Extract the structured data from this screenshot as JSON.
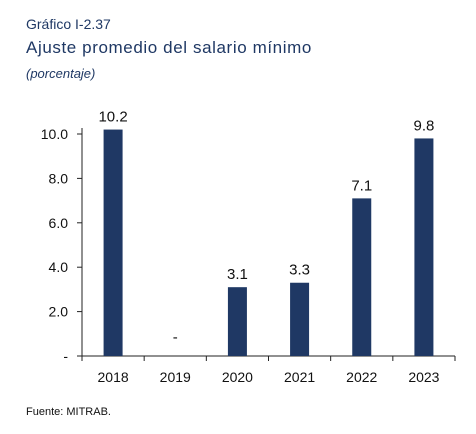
{
  "header": {
    "subtitle": "Gráfico I-2.37",
    "title": "Ajuste promedio del salario mínimo",
    "unit": "(porcentaje)"
  },
  "footer": {
    "source": "Fuente: MITRAB."
  },
  "chart_data": {
    "type": "bar",
    "categories": [
      "2018",
      "2019",
      "2020",
      "2021",
      "2022",
      "2023"
    ],
    "values": [
      10.2,
      0,
      3.1,
      3.3,
      7.1,
      9.8
    ],
    "data_labels": [
      "10.2",
      "-",
      "3.1",
      "3.3",
      "7.1",
      "9.8"
    ],
    "yticks": [
      "-",
      "2.0",
      "4.0",
      "6.0",
      "8.0",
      "10.0"
    ],
    "ylim": [
      0,
      10.0
    ],
    "bar_color": "#1f3864",
    "grid": false,
    "legend": "none"
  }
}
